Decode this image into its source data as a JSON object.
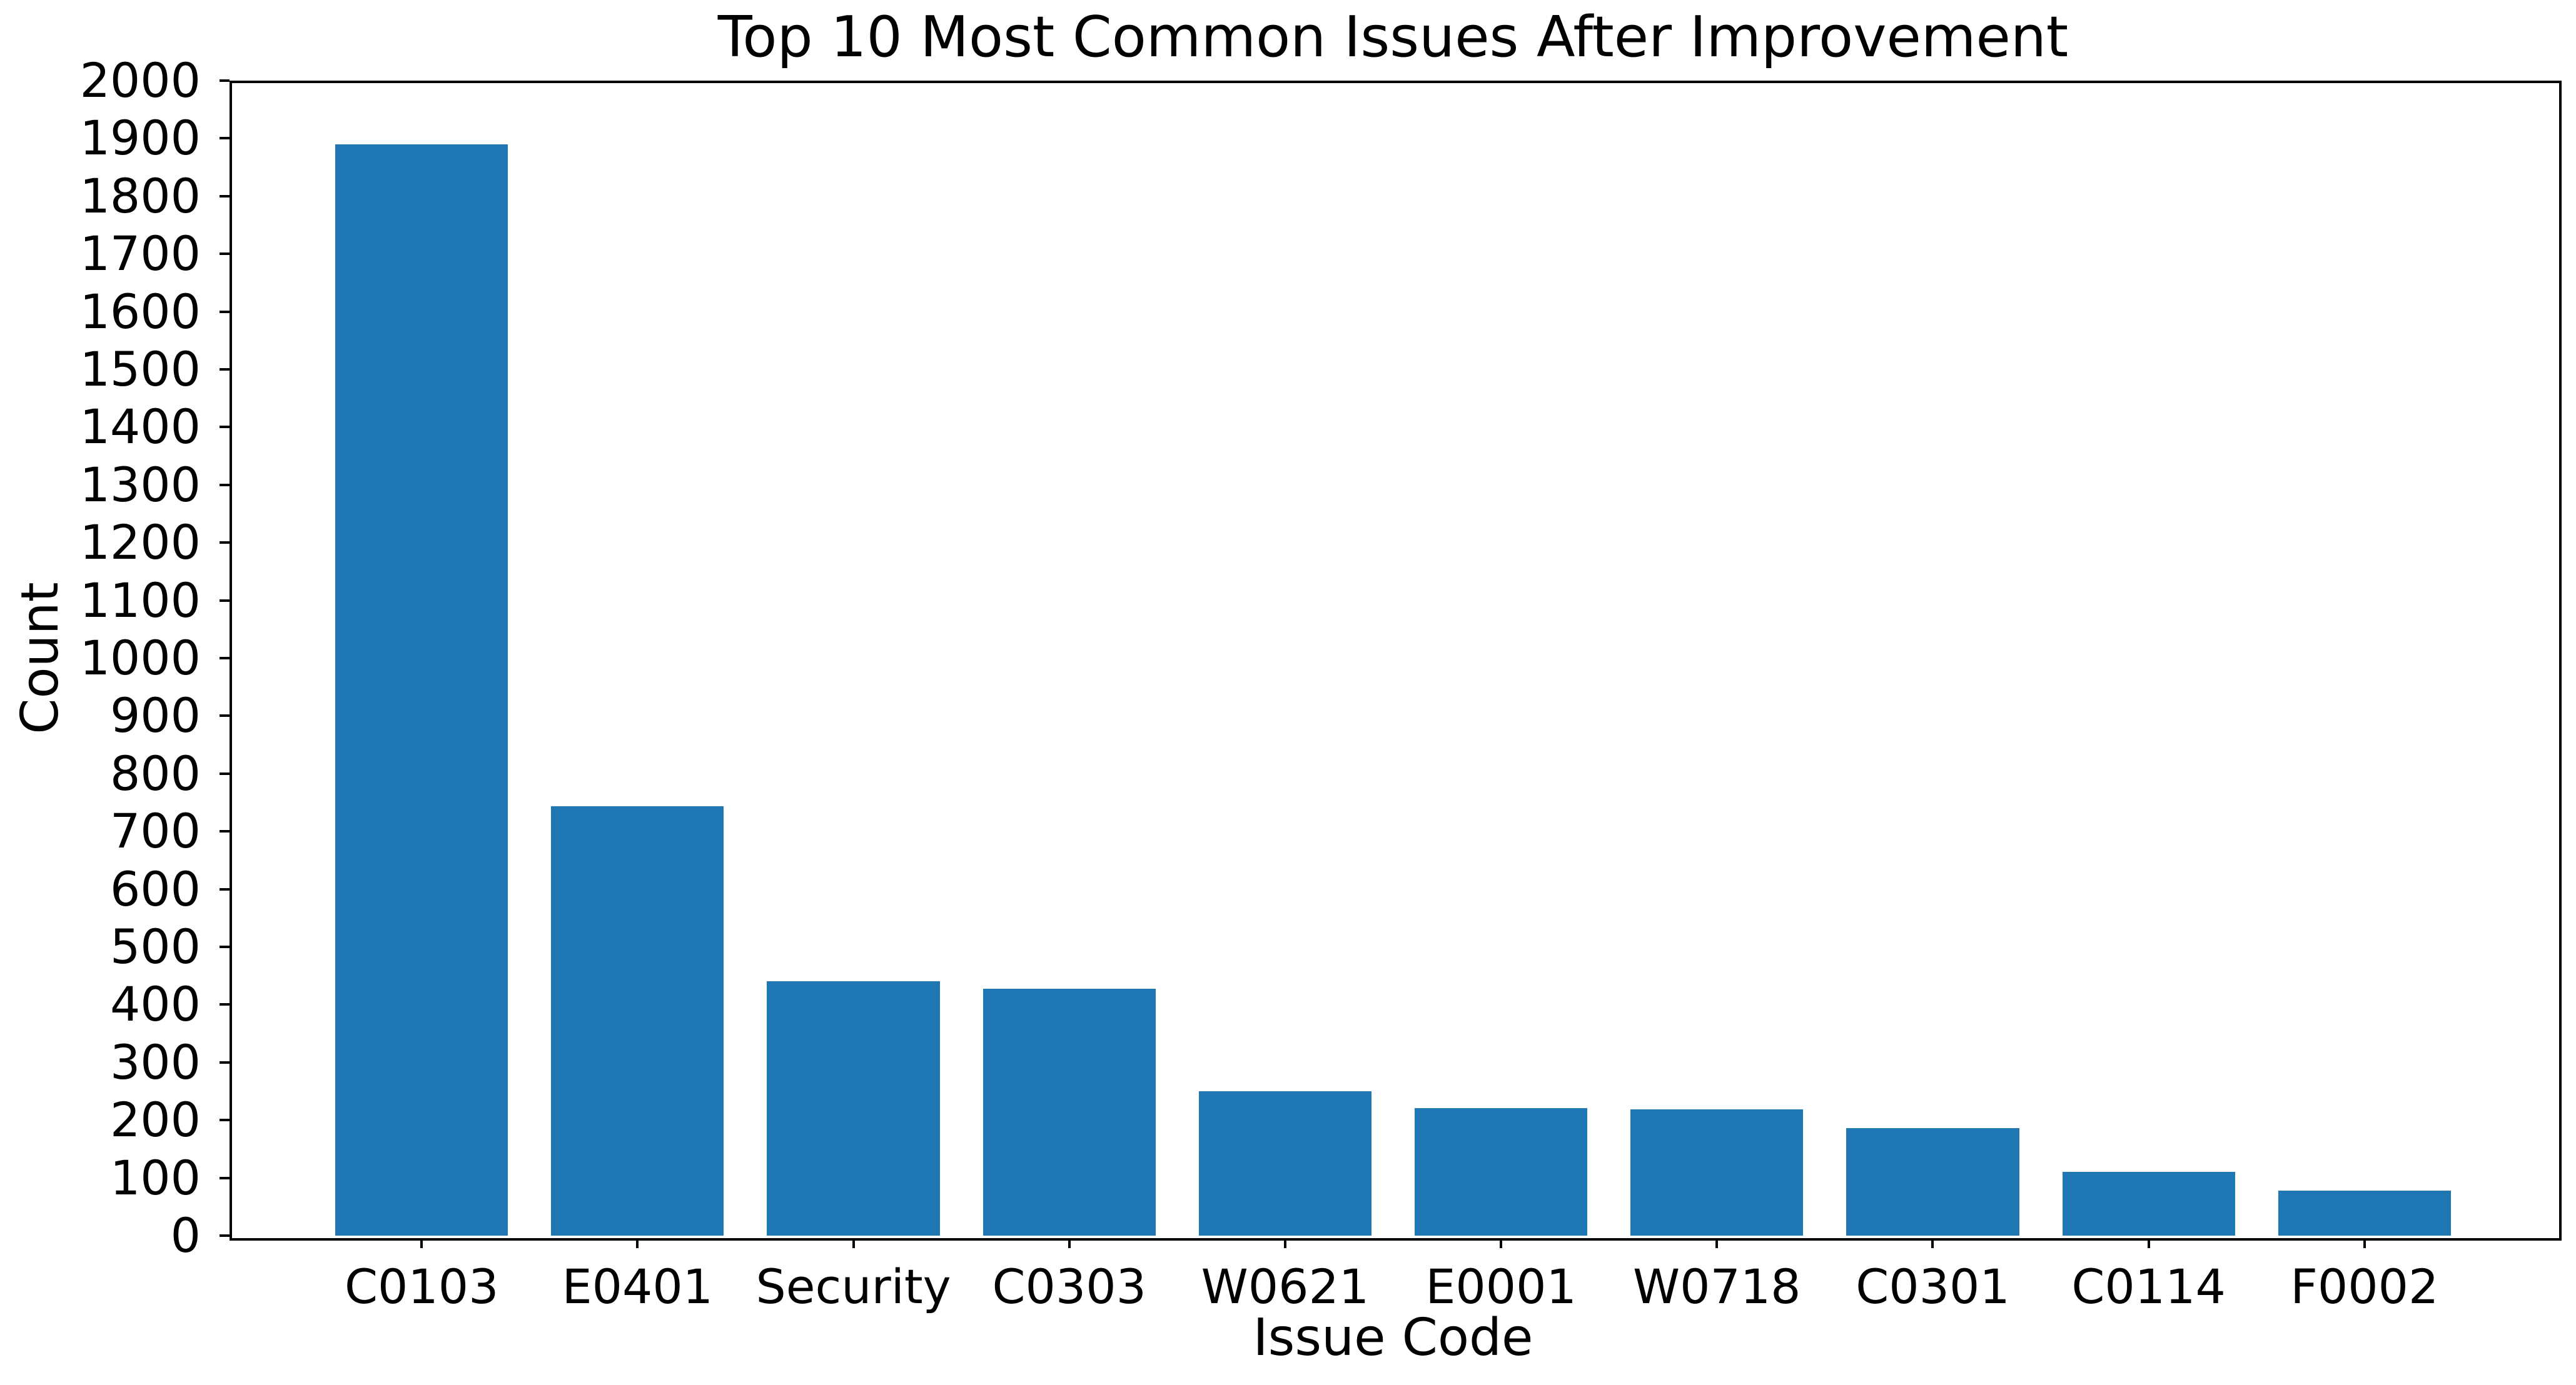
{
  "chart_data": {
    "type": "bar",
    "title": "Top 10 Most Common Issues After Improvement",
    "xlabel": "Issue Code",
    "ylabel": "Count",
    "categories": [
      "C0103",
      "E0401",
      "Security",
      "C0303",
      "W0621",
      "E0001",
      "W0718",
      "C0301",
      "C0114",
      "F0002"
    ],
    "values": [
      1890,
      744,
      440,
      428,
      250,
      221,
      219,
      186,
      110,
      78
    ],
    "ylim": [
      0,
      2000
    ],
    "ytick_step": 100,
    "yticks": [
      0,
      100,
      200,
      300,
      400,
      500,
      600,
      700,
      800,
      900,
      1000,
      1100,
      1200,
      1300,
      1400,
      1500,
      1600,
      1700,
      1800,
      1900,
      2000
    ],
    "bar_color": "#1f77b4",
    "axis_color": "#000000",
    "background_color": "#ffffff",
    "grid": false,
    "legend_position": "none",
    "bar_width_fraction": 0.8
  }
}
